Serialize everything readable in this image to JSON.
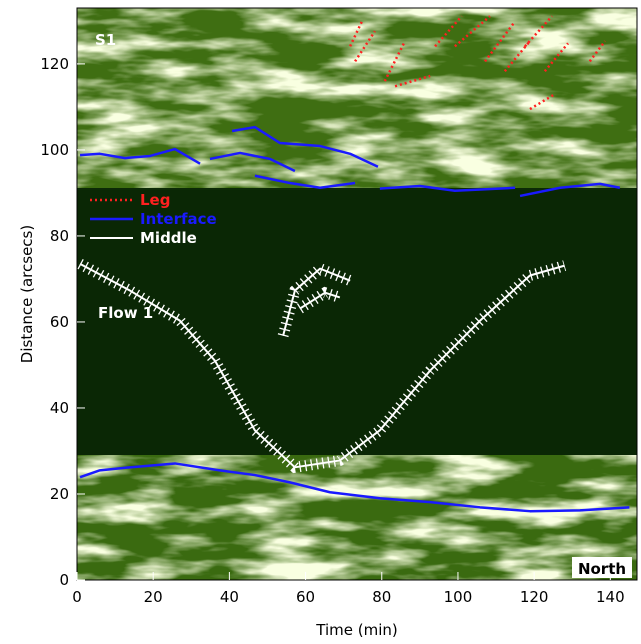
{
  "chart_data": {
    "type": "line",
    "xlabel": "Time (min)",
    "ylabel": "Distance (arcsecs)",
    "xlim": [
      0,
      147
    ],
    "ylim": [
      0,
      133
    ],
    "xticks": [
      0,
      20,
      40,
      60,
      80,
      100,
      120,
      140
    ],
    "yticks": [
      0,
      20,
      40,
      60,
      80,
      100,
      120
    ],
    "legend": "upper left",
    "annotations": [
      "S1",
      "Flow 1",
      "North"
    ],
    "series": [
      {
        "name": "Leg",
        "color": "#ff2020",
        "style": "dotted",
        "x": [
          71.7,
          74.8,
          null,
          73,
          78.2,
          null,
          80.8,
          86.1,
          null,
          83.5,
          92.7,
          null,
          94,
          101,
          null,
          99.2,
          108.4,
          null,
          107.1,
          115,
          null,
          112.3,
          118.9,
          null,
          117.6,
          124.7,
          null,
          122.8,
          128.9,
          null,
          134.6,
          138.6,
          null,
          118.9,
          125.5
        ],
        "values": [
          124.1,
          129.9,
          null,
          120.6,
          127.6,
          null,
          116,
          125.3,
          null,
          114.8,
          117.2,
          null,
          124.1,
          131.1,
          null,
          124.1,
          131.1,
          null,
          120.6,
          129.9,
          null,
          118.3,
          125.3,
          null,
          124.1,
          131.1,
          null,
          118.3,
          124.8,
          null,
          120.6,
          125.3,
          null,
          109.5,
          113
        ]
      },
      {
        "name": "Interface",
        "color": "#1a1aff",
        "style": "solid",
        "x": [
          0.8,
          6,
          12.6,
          19.2,
          25.7,
          32.3,
          null,
          34.9,
          42.8,
          50.7,
          57.2,
          null,
          40.7,
          46.7,
          53.3,
          63.8,
          71.7,
          79,
          null,
          46.7,
          55.9,
          63.8,
          73,
          null,
          79.5,
          90,
          99.2,
          115,
          null,
          116.3,
          126.8,
          137.3,
          142.5,
          null,
          0.8,
          6,
          13.9,
          25.7,
          37.5,
          46.7,
          55.9,
          66.4,
          79.5,
          92.7,
          105.8,
          118.9,
          132,
          145
        ],
        "values": [
          98.8,
          99.1,
          98.1,
          98.6,
          100.2,
          96.8,
          null,
          97.9,
          99.3,
          97.9,
          95.1,
          null,
          104.4,
          105.3,
          101.6,
          100.9,
          99.1,
          96.1,
          null,
          94,
          92.3,
          91.2,
          92.3,
          null,
          91,
          91.6,
          90.5,
          91.2,
          null,
          89.3,
          91.2,
          92.1,
          91.2,
          null,
          23.9,
          25.5,
          26.2,
          27.1,
          25.5,
          24.4,
          22.7,
          20.4,
          19,
          18.1,
          16.9,
          16,
          16.2,
          16.9
        ]
      },
      {
        "name": "Middle",
        "color": "#ffffff",
        "style": "hatched",
        "x": [
          0.8,
          13.9,
          27,
          36.2,
          46.7,
          57.2,
          69,
          79.5,
          92.7,
          105.8,
          118.9,
          128,
          null,
          54.1,
          57.2,
          63.8,
          71.7,
          null,
          58.5,
          65.1,
          69
        ],
        "values": [
          73.5,
          67.3,
          60.3,
          51,
          34.8,
          26.2,
          27.8,
          34.8,
          48.7,
          60.3,
          70.8,
          73.1,
          null,
          56.8,
          67.3,
          72.4,
          69.6,
          null,
          63.1,
          66.8,
          65.7
        ]
      }
    ]
  }
}
